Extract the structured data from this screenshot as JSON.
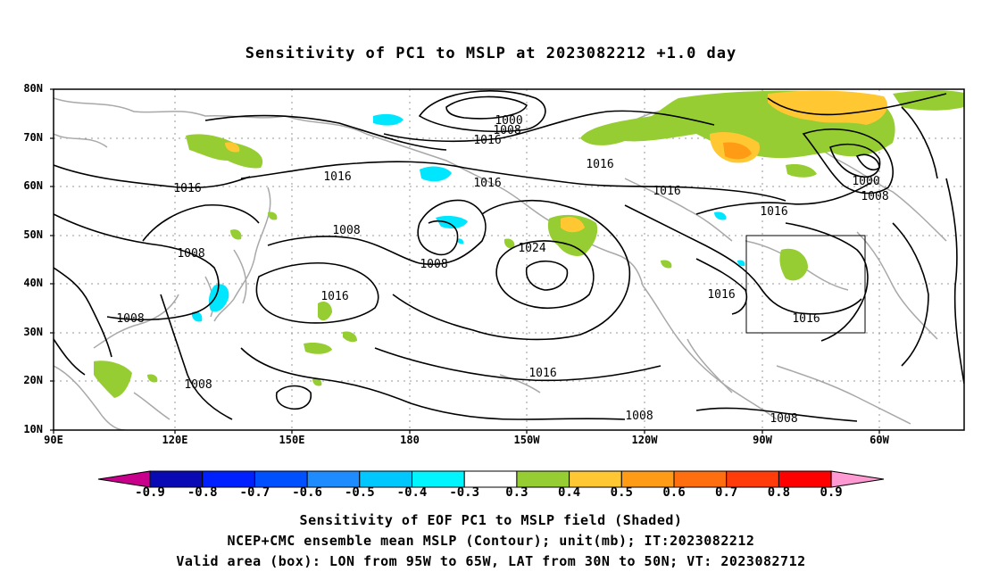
{
  "title": "Sensitivity of PC1 to MSLP at 2023082212 +1.0 day",
  "axes": {
    "y_labels": [
      "80N",
      "70N",
      "60N",
      "50N",
      "40N",
      "30N",
      "20N",
      "10N"
    ],
    "x_labels": [
      "90E",
      "120E",
      "150E",
      "180",
      "150W",
      "120W",
      "90W",
      "60W"
    ]
  },
  "contour_labels": [
    "1000",
    "1008",
    "1016",
    "1016",
    "1016",
    "1016",
    "1000",
    "1008",
    "1016",
    "1016",
    "1008",
    "1008",
    "1024",
    "1008",
    "1016",
    "1016",
    "1016",
    "1008",
    "1008",
    "1016",
    "1016",
    "1008",
    "1008",
    "1008"
  ],
  "colorbar": {
    "labels": [
      "-0.9",
      "-0.8",
      "-0.7",
      "-0.6",
      "-0.5",
      "-0.4",
      "-0.3",
      "0.3",
      "0.4",
      "0.5",
      "0.6",
      "0.7",
      "0.8",
      "0.9"
    ],
    "colors": [
      "#c8008c",
      "#0a0ab4",
      "#0020ff",
      "#0050ff",
      "#1e8cff",
      "#00c8ff",
      "#00f5ff",
      "#ffffff",
      "#96cd32",
      "#ffc832",
      "#ff9b14",
      "#ff6e0f",
      "#ff3c0a",
      "#ff0000",
      "#ff9bd2"
    ]
  },
  "captions": {
    "line1": "Sensitivity of EOF PC1 to MSLP field (Shaded)",
    "line2": "NCEP+CMC ensemble mean MSLP (Contour); unit(mb); IT:2023082212",
    "line3": "Valid area (box): LON from 95W to 65W, LAT from 30N to 50N; VT: 2023082712"
  },
  "valid_area": {
    "lon_min": -95,
    "lon_max": -65,
    "lat_min": 30,
    "lat_max": 50
  }
}
